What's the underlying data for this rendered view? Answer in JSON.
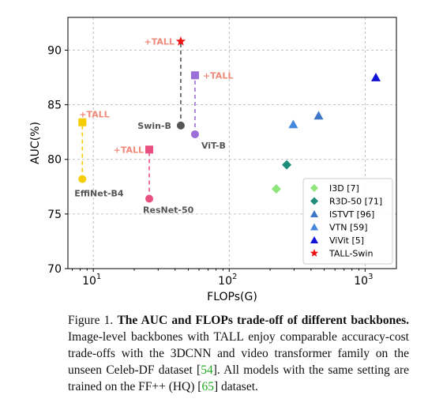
{
  "chart_data": {
    "type": "scatter",
    "xlabel": "FLOPs(G)",
    "ylabel": "AUC(%)",
    "xscale": "log",
    "xlim": [
      6.5,
      1700
    ],
    "ylim": [
      70,
      93
    ],
    "yticks": [
      70,
      75,
      80,
      85,
      90
    ],
    "xticks": [
      {
        "value": 10,
        "base": "10",
        "exp": "1"
      },
      {
        "value": 100,
        "base": "10",
        "exp": "2"
      },
      {
        "value": 1000,
        "base": "10",
        "exp": "3"
      }
    ],
    "grid": true,
    "legend_position": "lower-right",
    "pairs": [
      {
        "name": "EfficientNet-B4",
        "label": "EffiNet-B4",
        "color": "#f5cc00",
        "x": 8.3,
        "y_base": 78.2,
        "y_tall": 83.4,
        "tall_marker": "square",
        "tall_label": "+TALL"
      },
      {
        "name": "ResNet-50",
        "label": "ResNet-50",
        "color": "#e9507f",
        "x": 25.8,
        "y_base": 76.4,
        "y_tall": 80.9,
        "tall_marker": "square",
        "tall_label": "+TALL"
      },
      {
        "name": "ViT-B",
        "label": "ViT-B",
        "color": "#9b6fd8",
        "x": 56,
        "y_base": 82.3,
        "y_tall": 87.7,
        "tall_marker": "square",
        "tall_label": "+TALL"
      },
      {
        "name": "Swin-B",
        "label": "Swin-B",
        "color": "#555555",
        "x": 44,
        "y_base": 83.1,
        "y_tall": 90.8,
        "tall_marker": "star",
        "tall_label": "+TALL"
      }
    ],
    "series": [
      {
        "name": "I3D [7]",
        "marker": "diamond",
        "color": "#8ee67a",
        "x": [
          222
        ],
        "y": [
          77.3
        ]
      },
      {
        "name": "R3D-50 [71]",
        "marker": "diamond",
        "color": "#1e8c7a",
        "x": [
          265
        ],
        "y": [
          79.5
        ]
      },
      {
        "name": "ISTVT [96]",
        "marker": "triangle",
        "color": "#3d77c8",
        "x": [
          455
        ],
        "y": [
          84.0
        ]
      },
      {
        "name": "VTN [59]",
        "marker": "triangle",
        "color": "#4488dd",
        "x": [
          296
        ],
        "y": [
          83.2
        ]
      },
      {
        "name": "ViVit [5]",
        "marker": "triangle",
        "color": "#1010d8",
        "x": [
          1200
        ],
        "y": [
          87.5
        ]
      },
      {
        "name": "TALL-Swin",
        "marker": "star",
        "color": "#ee1111",
        "x": [],
        "y": []
      }
    ],
    "label_color": "#555555",
    "tall_label_color": "#f08a7a"
  },
  "caption": {
    "prefix": "Figure 1. ",
    "bold": "The AUC and FLOPs trade-off of different backbones.",
    "t1": " Image-level backbones with TALL enjoy comparable accuracy-cost trade-offs with the 3DCNN and video transformer family on the unseen Celeb-DF dataset [",
    "c1": "54",
    "t2": "]. All models with the same setting are trained on the FF++ (HQ) [",
    "c2": "65",
    "t3": "] dataset."
  }
}
